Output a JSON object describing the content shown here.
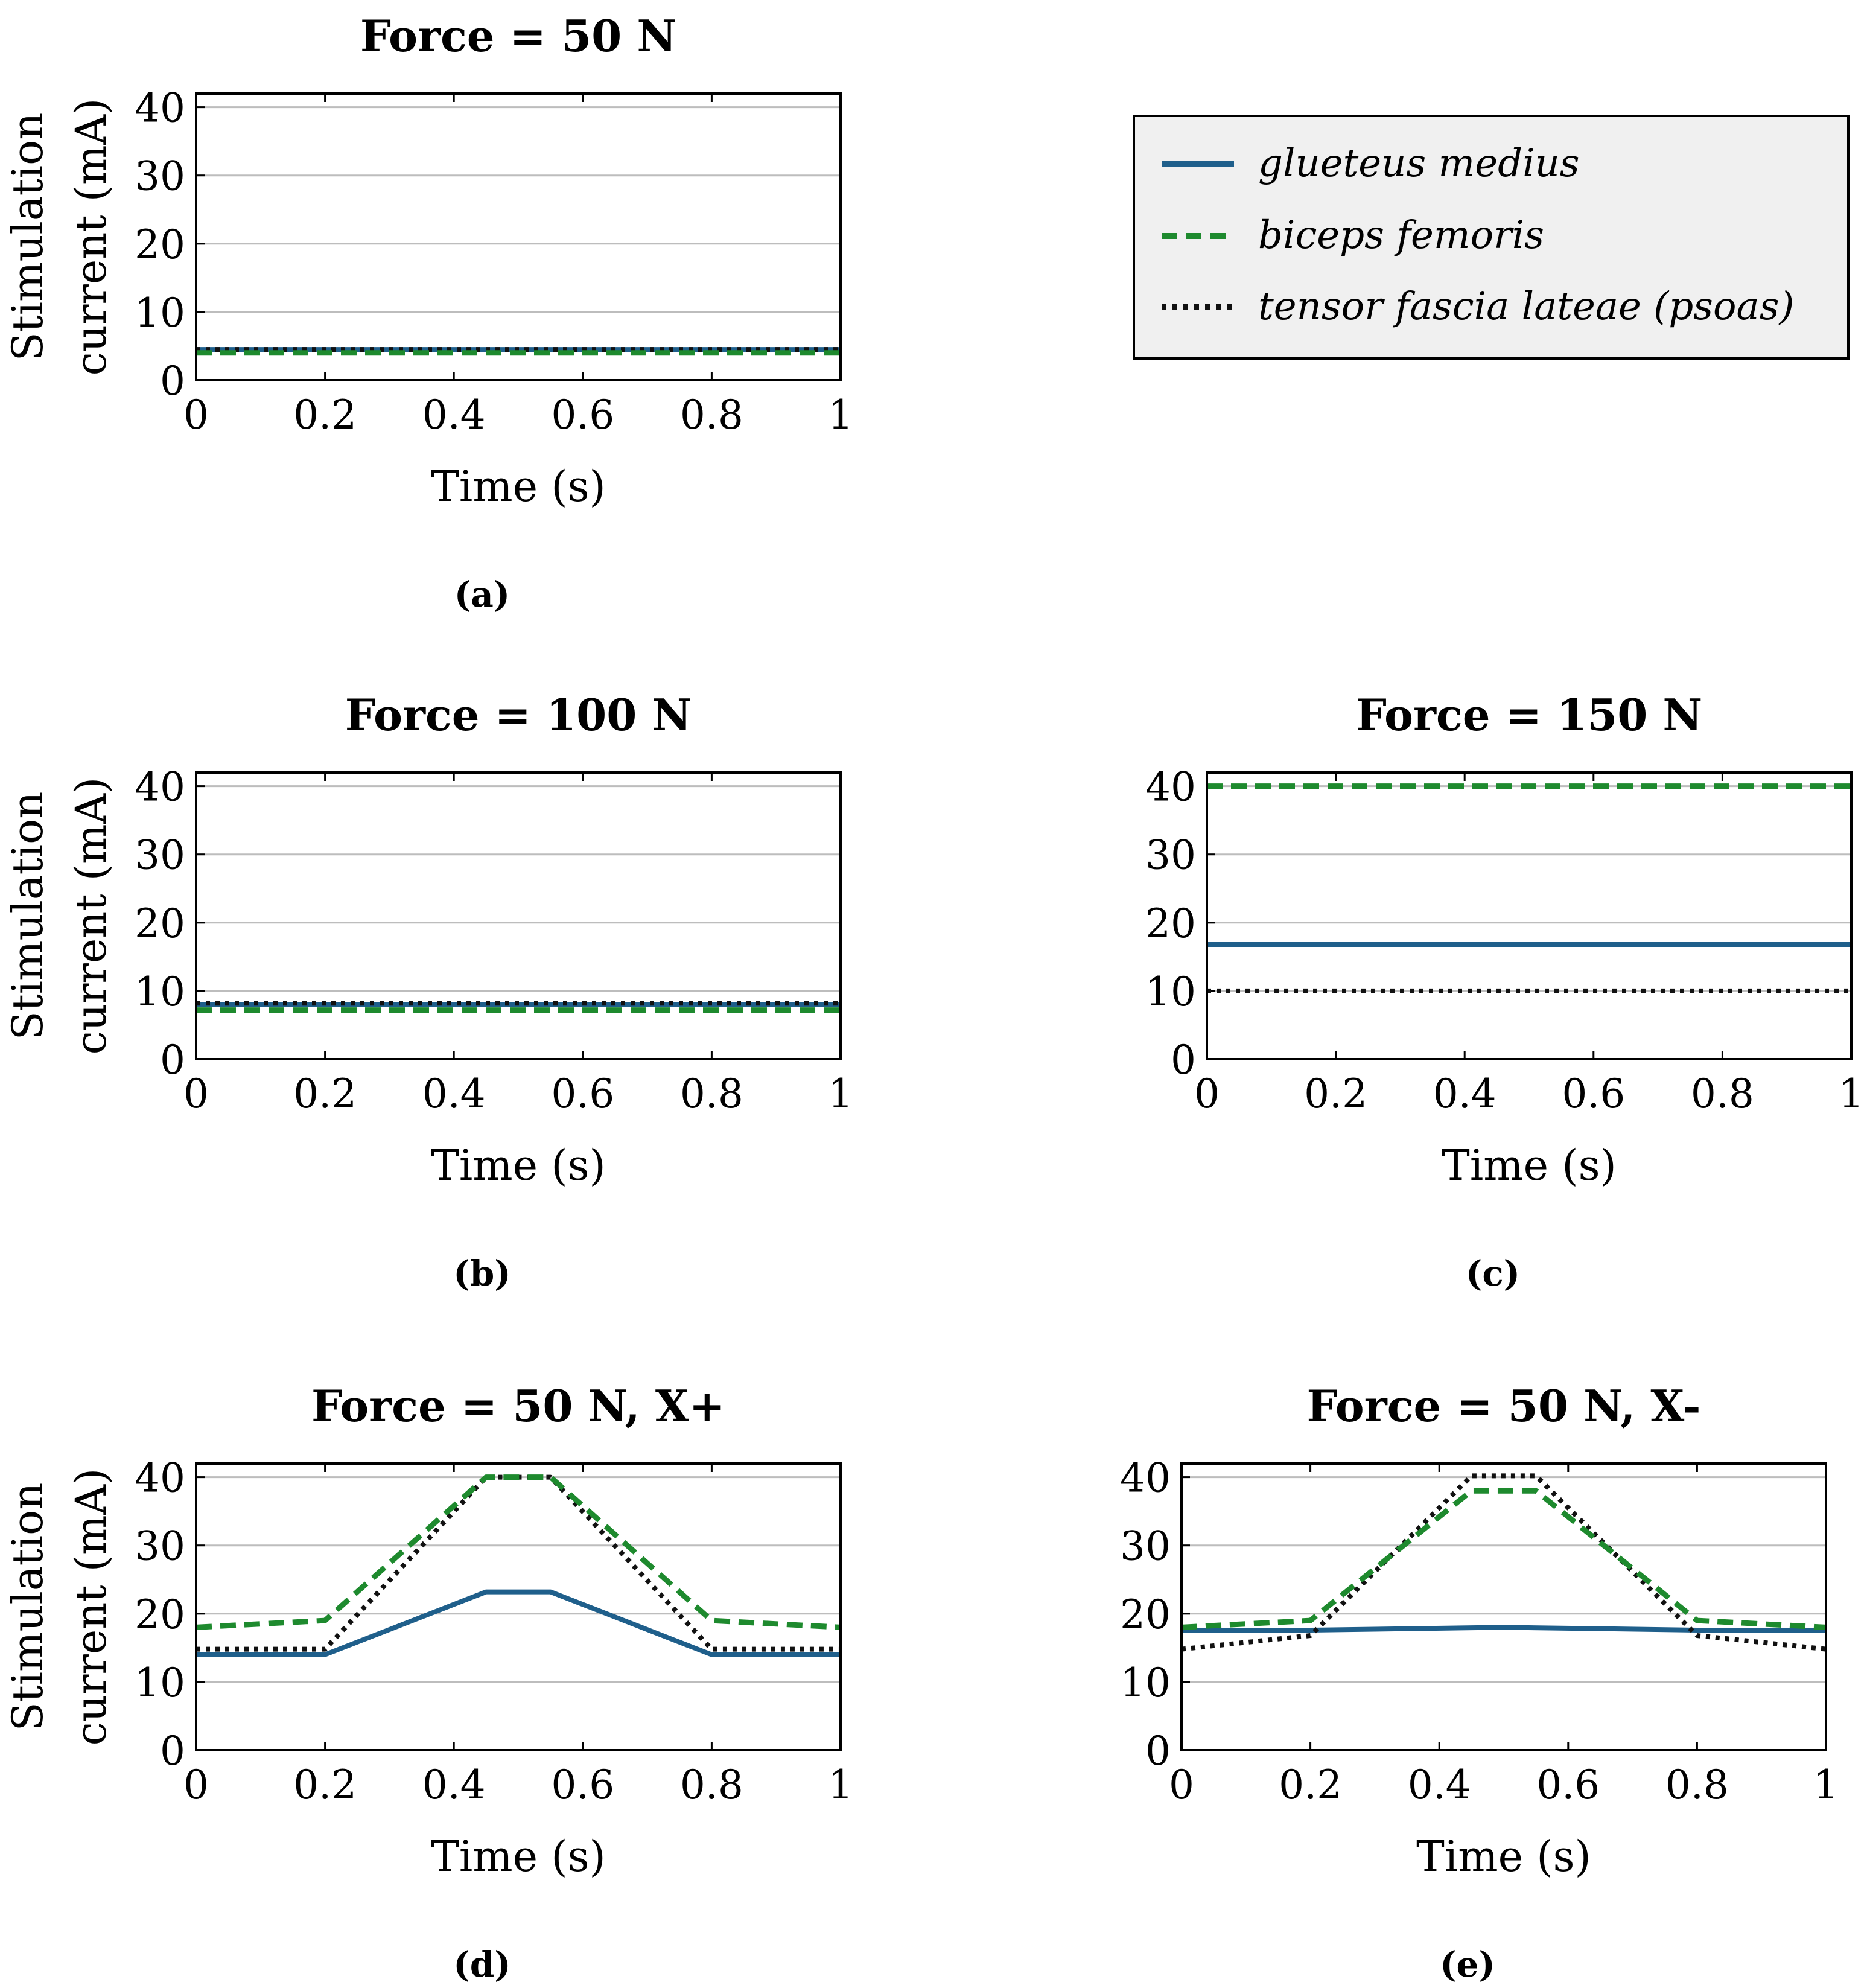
{
  "colors": {
    "glueteus": "#1f5f8b",
    "biceps": "#1e8a2e",
    "tensor": "#111111",
    "grid": "#bdbdbd",
    "legend_bg": "#f0f0f0"
  },
  "legend": [
    {
      "label": "glueteus medius",
      "series": "glueteus"
    },
    {
      "label": "biceps femoris",
      "series": "biceps"
    },
    {
      "label": "tensor fascia lateae (psoas)",
      "series": "tensor"
    }
  ],
  "chart_data": [
    {
      "id": "a",
      "type": "line",
      "title": "Force = 50 N",
      "caption": "(a)",
      "xlabel": "Time (s)",
      "ylabel": [
        "Stimulation",
        "current (mA)"
      ],
      "xlim": [
        0,
        1
      ],
      "ylim": [
        0,
        42
      ],
      "xticks": [
        "0",
        "0.2",
        "0.4",
        "0.6",
        "0.8",
        "1"
      ],
      "yticks": [
        "0",
        "10",
        "20",
        "30",
        "40"
      ],
      "series": [
        {
          "name": "glueteus medius",
          "key": "glueteus",
          "x": [
            0,
            1
          ],
          "y": [
            4.5,
            4.5
          ]
        },
        {
          "name": "biceps femoris",
          "key": "biceps",
          "x": [
            0,
            1
          ],
          "y": [
            4.0,
            4.0
          ]
        },
        {
          "name": "tensor fascia lateae (psoas)",
          "key": "tensor",
          "x": [
            0,
            1
          ],
          "y": [
            4.5,
            4.5
          ]
        }
      ]
    },
    {
      "id": "b",
      "type": "line",
      "title": "Force = 100 N",
      "caption": "(b)",
      "xlabel": "Time (s)",
      "ylabel": [
        "Stimulation",
        "current (mA)"
      ],
      "xlim": [
        0,
        1
      ],
      "ylim": [
        0,
        42
      ],
      "xticks": [
        "0",
        "0.2",
        "0.4",
        "0.6",
        "0.8",
        "1"
      ],
      "yticks": [
        "0",
        "10",
        "20",
        "30",
        "40"
      ],
      "series": [
        {
          "name": "glueteus medius",
          "key": "glueteus",
          "x": [
            0,
            1
          ],
          "y": [
            8.0,
            8.0
          ]
        },
        {
          "name": "biceps femoris",
          "key": "biceps",
          "x": [
            0,
            1
          ],
          "y": [
            7.2,
            7.2
          ]
        },
        {
          "name": "tensor fascia lateae (psoas)",
          "key": "tensor",
          "x": [
            0,
            1
          ],
          "y": [
            8.2,
            8.2
          ]
        }
      ]
    },
    {
      "id": "c",
      "type": "line",
      "title": "Force = 150 N",
      "caption": "(c)",
      "xlabel": "Time (s)",
      "ylabel": [],
      "xlim": [
        0,
        1
      ],
      "ylim": [
        0,
        42
      ],
      "xticks": [
        "0",
        "0.2",
        "0.4",
        "0.6",
        "0.8",
        "1"
      ],
      "yticks": [
        "0",
        "10",
        "20",
        "30",
        "40"
      ],
      "series": [
        {
          "name": "glueteus medius",
          "key": "glueteus",
          "x": [
            0,
            1
          ],
          "y": [
            16.8,
            16.8
          ]
        },
        {
          "name": "biceps femoris",
          "key": "biceps",
          "x": [
            0,
            1
          ],
          "y": [
            40,
            40
          ]
        },
        {
          "name": "tensor fascia lateae (psoas)",
          "key": "tensor",
          "x": [
            0,
            1
          ],
          "y": [
            10,
            10
          ]
        }
      ]
    },
    {
      "id": "d",
      "type": "line",
      "title": "Force = 50 N, X+",
      "caption": "(d)",
      "xlabel": "Time (s)",
      "ylabel": [
        "Stimulation",
        "current (mA)"
      ],
      "xlim": [
        0,
        1
      ],
      "ylim": [
        0,
        42
      ],
      "xticks": [
        "0",
        "0.2",
        "0.4",
        "0.6",
        "0.8",
        "1"
      ],
      "yticks": [
        "0",
        "10",
        "20",
        "30",
        "40"
      ],
      "series": [
        {
          "name": "glueteus medius",
          "key": "glueteus",
          "x": [
            0,
            0.2,
            0.45,
            0.55,
            0.8,
            1
          ],
          "y": [
            14,
            14,
            23.2,
            23.2,
            14,
            14
          ]
        },
        {
          "name": "biceps femoris",
          "key": "biceps",
          "x": [
            0,
            0.2,
            0.45,
            0.55,
            0.8,
            1
          ],
          "y": [
            18,
            19,
            40,
            40,
            19,
            18
          ]
        },
        {
          "name": "tensor fascia lateae (psoas)",
          "key": "tensor",
          "x": [
            0,
            0.2,
            0.45,
            0.55,
            0.8,
            1
          ],
          "y": [
            14.8,
            14.8,
            40,
            40,
            14.8,
            14.8
          ]
        }
      ]
    },
    {
      "id": "e",
      "type": "line",
      "title": "Force = 50 N, X-",
      "caption": "(e)",
      "xlabel": "Time (s)",
      "ylabel": [],
      "xlim": [
        0,
        1
      ],
      "ylim": [
        0,
        42
      ],
      "xticks": [
        "0",
        "0.2",
        "0.4",
        "0.6",
        "0.8",
        "1"
      ],
      "yticks": [
        "0",
        "10",
        "20",
        "30",
        "40"
      ],
      "series": [
        {
          "name": "glueteus medius",
          "key": "glueteus",
          "x": [
            0,
            0.2,
            0.5,
            0.8,
            1
          ],
          "y": [
            17.6,
            17.6,
            18,
            17.6,
            17.6
          ]
        },
        {
          "name": "biceps femoris",
          "key": "biceps",
          "x": [
            0,
            0.2,
            0.45,
            0.55,
            0.8,
            1
          ],
          "y": [
            18,
            19,
            38,
            38,
            19,
            18
          ]
        },
        {
          "name": "tensor fascia lateae (psoas)",
          "key": "tensor",
          "x": [
            0,
            0.2,
            0.45,
            0.55,
            0.8,
            1
          ],
          "y": [
            14.8,
            16.8,
            40.2,
            40.2,
            16.8,
            14.8
          ]
        }
      ]
    }
  ]
}
